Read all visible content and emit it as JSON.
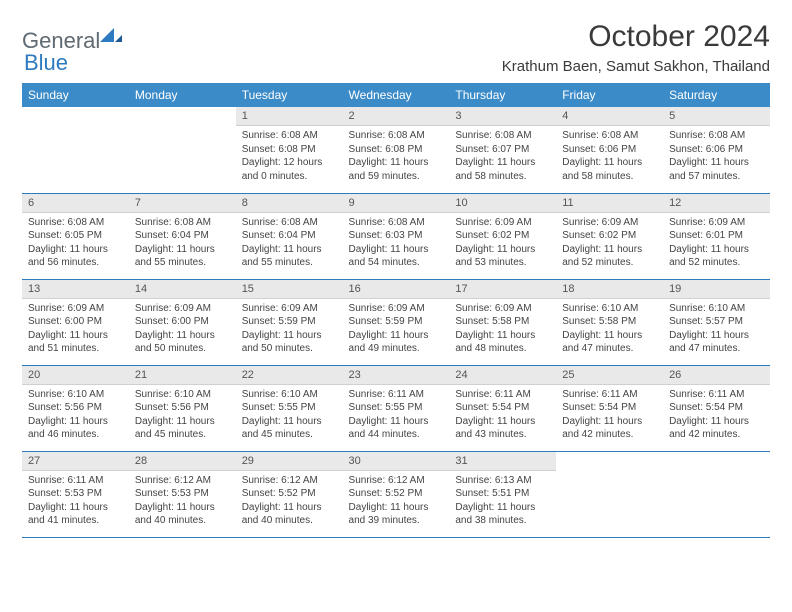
{
  "brand": {
    "part1": "General",
    "part2": "Blue"
  },
  "title": "October 2024",
  "location": "Krathum Baen, Samut Sakhon, Thailand",
  "colors": {
    "header_bg": "#3b8bc9",
    "header_text": "#ffffff",
    "daynum_bg": "#e9e9e9",
    "row_border": "#2e7ac0",
    "logo_gray": "#5f6a72",
    "logo_blue": "#2e7ac0"
  },
  "weekdays": [
    "Sunday",
    "Monday",
    "Tuesday",
    "Wednesday",
    "Thursday",
    "Friday",
    "Saturday"
  ],
  "weeks": [
    [
      {
        "empty": true
      },
      {
        "empty": true
      },
      {
        "n": "1",
        "sunrise": "6:08 AM",
        "sunset": "6:08 PM",
        "daylight": "12 hours and 0 minutes."
      },
      {
        "n": "2",
        "sunrise": "6:08 AM",
        "sunset": "6:08 PM",
        "daylight": "11 hours and 59 minutes."
      },
      {
        "n": "3",
        "sunrise": "6:08 AM",
        "sunset": "6:07 PM",
        "daylight": "11 hours and 58 minutes."
      },
      {
        "n": "4",
        "sunrise": "6:08 AM",
        "sunset": "6:06 PM",
        "daylight": "11 hours and 58 minutes."
      },
      {
        "n": "5",
        "sunrise": "6:08 AM",
        "sunset": "6:06 PM",
        "daylight": "11 hours and 57 minutes."
      }
    ],
    [
      {
        "n": "6",
        "sunrise": "6:08 AM",
        "sunset": "6:05 PM",
        "daylight": "11 hours and 56 minutes."
      },
      {
        "n": "7",
        "sunrise": "6:08 AM",
        "sunset": "6:04 PM",
        "daylight": "11 hours and 55 minutes."
      },
      {
        "n": "8",
        "sunrise": "6:08 AM",
        "sunset": "6:04 PM",
        "daylight": "11 hours and 55 minutes."
      },
      {
        "n": "9",
        "sunrise": "6:08 AM",
        "sunset": "6:03 PM",
        "daylight": "11 hours and 54 minutes."
      },
      {
        "n": "10",
        "sunrise": "6:09 AM",
        "sunset": "6:02 PM",
        "daylight": "11 hours and 53 minutes."
      },
      {
        "n": "11",
        "sunrise": "6:09 AM",
        "sunset": "6:02 PM",
        "daylight": "11 hours and 52 minutes."
      },
      {
        "n": "12",
        "sunrise": "6:09 AM",
        "sunset": "6:01 PM",
        "daylight": "11 hours and 52 minutes."
      }
    ],
    [
      {
        "n": "13",
        "sunrise": "6:09 AM",
        "sunset": "6:00 PM",
        "daylight": "11 hours and 51 minutes."
      },
      {
        "n": "14",
        "sunrise": "6:09 AM",
        "sunset": "6:00 PM",
        "daylight": "11 hours and 50 minutes."
      },
      {
        "n": "15",
        "sunrise": "6:09 AM",
        "sunset": "5:59 PM",
        "daylight": "11 hours and 50 minutes."
      },
      {
        "n": "16",
        "sunrise": "6:09 AM",
        "sunset": "5:59 PM",
        "daylight": "11 hours and 49 minutes."
      },
      {
        "n": "17",
        "sunrise": "6:09 AM",
        "sunset": "5:58 PM",
        "daylight": "11 hours and 48 minutes."
      },
      {
        "n": "18",
        "sunrise": "6:10 AM",
        "sunset": "5:58 PM",
        "daylight": "11 hours and 47 minutes."
      },
      {
        "n": "19",
        "sunrise": "6:10 AM",
        "sunset": "5:57 PM",
        "daylight": "11 hours and 47 minutes."
      }
    ],
    [
      {
        "n": "20",
        "sunrise": "6:10 AM",
        "sunset": "5:56 PM",
        "daylight": "11 hours and 46 minutes."
      },
      {
        "n": "21",
        "sunrise": "6:10 AM",
        "sunset": "5:56 PM",
        "daylight": "11 hours and 45 minutes."
      },
      {
        "n": "22",
        "sunrise": "6:10 AM",
        "sunset": "5:55 PM",
        "daylight": "11 hours and 45 minutes."
      },
      {
        "n": "23",
        "sunrise": "6:11 AM",
        "sunset": "5:55 PM",
        "daylight": "11 hours and 44 minutes."
      },
      {
        "n": "24",
        "sunrise": "6:11 AM",
        "sunset": "5:54 PM",
        "daylight": "11 hours and 43 minutes."
      },
      {
        "n": "25",
        "sunrise": "6:11 AM",
        "sunset": "5:54 PM",
        "daylight": "11 hours and 42 minutes."
      },
      {
        "n": "26",
        "sunrise": "6:11 AM",
        "sunset": "5:54 PM",
        "daylight": "11 hours and 42 minutes."
      }
    ],
    [
      {
        "n": "27",
        "sunrise": "6:11 AM",
        "sunset": "5:53 PM",
        "daylight": "11 hours and 41 minutes."
      },
      {
        "n": "28",
        "sunrise": "6:12 AM",
        "sunset": "5:53 PM",
        "daylight": "11 hours and 40 minutes."
      },
      {
        "n": "29",
        "sunrise": "6:12 AM",
        "sunset": "5:52 PM",
        "daylight": "11 hours and 40 minutes."
      },
      {
        "n": "30",
        "sunrise": "6:12 AM",
        "sunset": "5:52 PM",
        "daylight": "11 hours and 39 minutes."
      },
      {
        "n": "31",
        "sunrise": "6:13 AM",
        "sunset": "5:51 PM",
        "daylight": "11 hours and 38 minutes."
      },
      {
        "empty": true
      },
      {
        "empty": true
      }
    ]
  ],
  "labels": {
    "sunrise": "Sunrise:",
    "sunset": "Sunset:",
    "daylight": "Daylight:"
  }
}
